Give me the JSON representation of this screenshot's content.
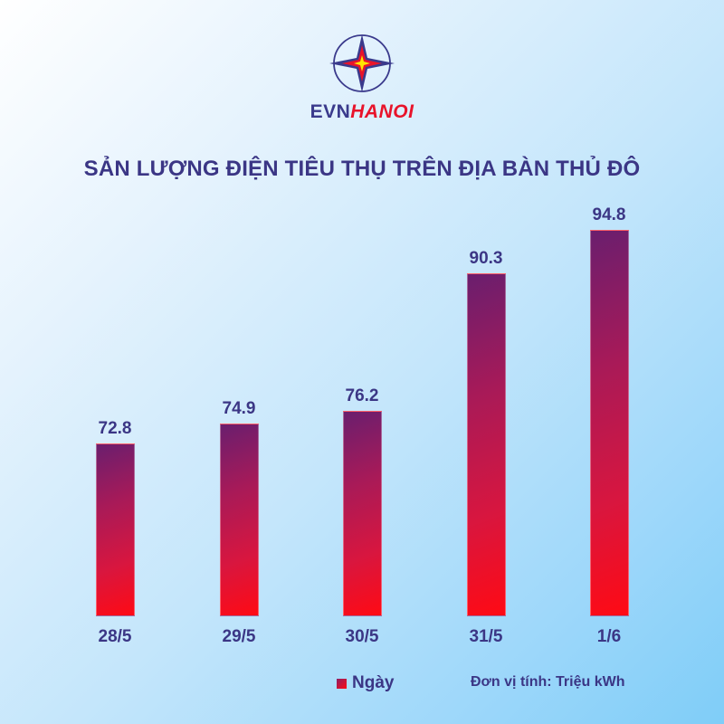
{
  "brand": {
    "part1": "EVN",
    "part2": "HANOI",
    "colors": {
      "navy": "#3a3a8c",
      "red": "#e8132a"
    }
  },
  "title": "SẢN LƯỢNG ĐIỆN TIÊU THỤ TRÊN ĐỊA BÀN THỦ ĐÔ",
  "legend": {
    "label": "Ngày"
  },
  "unit_note": "Đơn vị tính: Triệu kWh",
  "chart_data": {
    "type": "bar",
    "title": "SẢN LƯỢNG ĐIỆN TIÊU THỤ TRÊN ĐỊA BÀN THỦ ĐÔ",
    "categories": [
      "28/5",
      "29/5",
      "30/5",
      "31/5",
      "1/6"
    ],
    "series": [
      {
        "name": "Ngày",
        "values": [
          72.8,
          74.9,
          76.2,
          90.3,
          94.8
        ]
      }
    ],
    "value_labels": [
      "72.8",
      "74.9",
      "76.2",
      "90.3",
      "94.8"
    ],
    "xlabel": "",
    "ylabel": "Triệu kWh",
    "unit": "Triệu kWh",
    "grid": false,
    "y_axis_visible": false,
    "legend_position": "bottom",
    "bar_colors": {
      "top": "#6a1e6e",
      "bottom": "#ff0a14"
    }
  }
}
